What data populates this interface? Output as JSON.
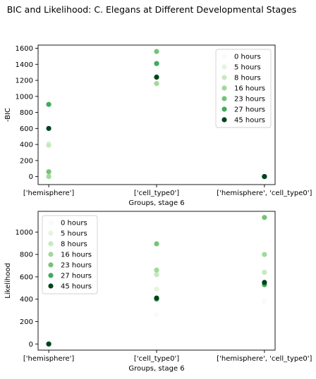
{
  "figure": {
    "suptitle": "BIC and Likelihood: C. Elegans at Different Developmental Stages"
  },
  "legend_colors": [
    "#f7fcf5",
    "#e5f5e0",
    "#c7e9c0",
    "#a1d99b",
    "#74c476",
    "#41ab5d",
    "#00441b"
  ],
  "chart_data": [
    {
      "type": "scatter",
      "title": "",
      "xlabel": "Groups, stage 6",
      "ylabel": "-BIC",
      "categories": [
        "['hemisphere']",
        "['cell_type0']",
        "['hemisphere', 'cell_type0']"
      ],
      "ylim": [
        -100,
        1640
      ],
      "yticks": [
        0,
        200,
        400,
        600,
        800,
        1000,
        1200,
        1400,
        1600
      ],
      "grid": false,
      "legend_position": "top-right",
      "series": [
        {
          "name": "0 hours",
          "values": [
            420,
            1250,
            0
          ]
        },
        {
          "name": "5 hours",
          "values": [
            410,
            1240,
            0
          ]
        },
        {
          "name": "8 hours",
          "values": [
            390,
            1235,
            0
          ]
        },
        {
          "name": "16 hours",
          "values": [
            0,
            1160,
            0
          ]
        },
        {
          "name": "23 hours",
          "values": [
            60,
            1560,
            0
          ]
        },
        {
          "name": "27 hours",
          "values": [
            900,
            1410,
            0
          ]
        },
        {
          "name": "45 hours",
          "values": [
            600,
            1240,
            0
          ]
        }
      ]
    },
    {
      "type": "scatter",
      "title": "",
      "xlabel": "Groups, stage 6",
      "ylabel": "Likelihood",
      "categories": [
        "['hemisphere']",
        "['cell_type0']",
        "['hemisphere', 'cell_type0']"
      ],
      "ylim": [
        -55,
        1185
      ],
      "yticks": [
        0,
        200,
        400,
        600,
        800,
        1000
      ],
      "grid": false,
      "legend_position": "top-left",
      "series": [
        {
          "name": "0 hours",
          "values": [
            0,
            260,
            380
          ]
        },
        {
          "name": "5 hours",
          "values": [
            0,
            490,
            640
          ]
        },
        {
          "name": "8 hours",
          "values": [
            0,
            620,
            640
          ]
        },
        {
          "name": "16 hours",
          "values": [
            0,
            660,
            800
          ]
        },
        {
          "name": "23 hours",
          "values": [
            0,
            895,
            1130
          ]
        },
        {
          "name": "27 hours",
          "values": [
            0,
            400,
            530
          ]
        },
        {
          "name": "45 hours",
          "values": [
            0,
            410,
            550
          ]
        }
      ]
    }
  ]
}
